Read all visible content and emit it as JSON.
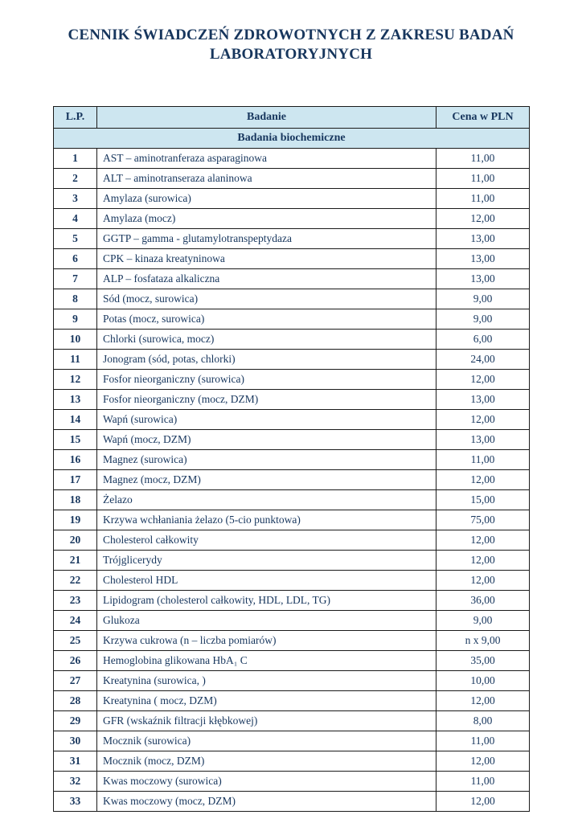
{
  "colors": {
    "header_bg": "#cde6f0",
    "text": "#17365d",
    "border": "#1a1a1a"
  },
  "page": {
    "title_line1": "CENNIK ŚWIADCZEŃ ZDROWOTNYCH Z ZAKRESU BADAŃ",
    "title_line2": "LABORATORYJNYCH"
  },
  "table": {
    "headers": {
      "lp": "L.P.",
      "badanie": "Badanie",
      "cena": "Cena w PLN"
    },
    "section": "Badania biochemiczne",
    "rows": [
      {
        "lp": "1",
        "badanie": "AST – aminotranferaza asparaginowa",
        "cena": "11,00"
      },
      {
        "lp": "2",
        "badanie": "ALT – aminotranseraza alaninowa",
        "cena": "11,00"
      },
      {
        "lp": "3",
        "badanie": "Amylaza (surowica)",
        "cena": "11,00"
      },
      {
        "lp": "4",
        "badanie": "Amylaza (mocz)",
        "cena": "12,00"
      },
      {
        "lp": "5",
        "badanie": "GGTP – gamma - glutamylotranspeptydaza",
        "cena": "13,00"
      },
      {
        "lp": "6",
        "badanie": "CPK – kinaza kreatyninowa",
        "cena": "13,00"
      },
      {
        "lp": "7",
        "badanie": "ALP – fosfataza alkaliczna",
        "cena": "13,00"
      },
      {
        "lp": "8",
        "badanie": "Sód (mocz, surowica)",
        "cena": "9,00"
      },
      {
        "lp": "9",
        "badanie": "Potas (mocz, surowica)",
        "cena": "9,00"
      },
      {
        "lp": "10",
        "badanie": "Chlorki (surowica, mocz)",
        "cena": "6,00"
      },
      {
        "lp": "11",
        "badanie": "Jonogram (sód, potas, chlorki)",
        "cena": "24,00"
      },
      {
        "lp": "12",
        "badanie": "Fosfor nieorganiczny (surowica)",
        "cena": "12,00"
      },
      {
        "lp": "13",
        "badanie": "Fosfor nieorganiczny (mocz, DZM)",
        "cena": "13,00"
      },
      {
        "lp": "14",
        "badanie": "Wapń (surowica)",
        "cena": "12,00"
      },
      {
        "lp": "15",
        "badanie": "Wapń (mocz, DZM)",
        "cena": "13,00"
      },
      {
        "lp": "16",
        "badanie": "Magnez (surowica)",
        "cena": "11,00"
      },
      {
        "lp": "17",
        "badanie": "Magnez (mocz, DZM)",
        "cena": "12,00"
      },
      {
        "lp": "18",
        "badanie": "Żelazo",
        "cena": "15,00"
      },
      {
        "lp": "19",
        "badanie": "Krzywa wchłaniania żelazo (5-cio punktowa)",
        "cena": "75,00"
      },
      {
        "lp": "20",
        "badanie": "Cholesterol całkowity",
        "cena": "12,00"
      },
      {
        "lp": "21",
        "badanie": "Trójglicerydy",
        "cena": "12,00"
      },
      {
        "lp": "22",
        "badanie": "Cholesterol HDL",
        "cena": "12,00"
      },
      {
        "lp": "23",
        "badanie": "Lipidogram (cholesterol całkowity, HDL, LDL, TG)",
        "cena": "36,00"
      },
      {
        "lp": "24",
        "badanie": "Glukoza",
        "cena": "9,00"
      },
      {
        "lp": "25",
        "badanie": "Krzywa cukrowa (n – liczba pomiarów)",
        "cena": "n x 9,00"
      },
      {
        "lp": "26",
        "badanie": "Hemoglobina glikowana HbA₁ C",
        "cena": "35,00"
      },
      {
        "lp": "27",
        "badanie": "Kreatynina (surowica, )",
        "cena": "10,00"
      },
      {
        "lp": "28",
        "badanie": "Kreatynina ( mocz, DZM)",
        "cena": "12,00"
      },
      {
        "lp": "29",
        "badanie": "GFR (wskaźnik filtracji kłębkowej)",
        "cena": "8,00"
      },
      {
        "lp": "30",
        "badanie": "Mocznik (surowica)",
        "cena": "11,00"
      },
      {
        "lp": "31",
        "badanie": "Mocznik (mocz, DZM)",
        "cena": "12,00"
      },
      {
        "lp": "32",
        "badanie": "Kwas moczowy (surowica)",
        "cena": "11,00"
      },
      {
        "lp": "33",
        "badanie": "Kwas moczowy (mocz, DZM)",
        "cena": "12,00"
      }
    ]
  }
}
